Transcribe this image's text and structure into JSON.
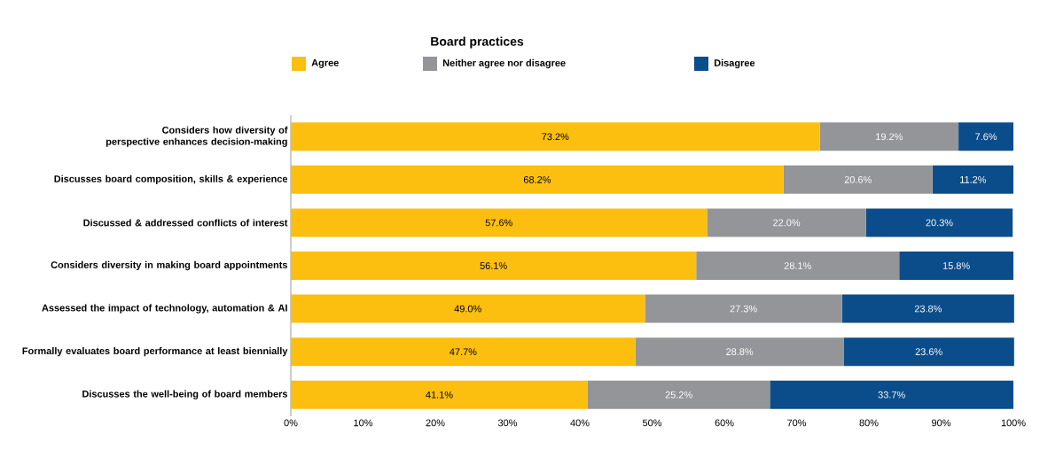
{
  "chart_data": {
    "type": "bar",
    "title": "Board practices",
    "orientation": "horizontal",
    "stacked": true,
    "legend": "top",
    "categories": [
      "Considers how diversity of perspective enhances decision-making",
      "Discusses board composition, skills & experience",
      "Discussed & addressed conflicts of interest",
      "Considers diversity in making board appointments",
      "Assessed the impact of technology, automation & AI",
      "Formally evaluates board performance at least biennially",
      "Discusses the well-being of board members"
    ],
    "series": [
      {
        "name": "Agree",
        "color": "#fcbf10",
        "values": [
          73.2,
          68.2,
          57.6,
          56.1,
          49.0,
          47.7,
          41.1
        ],
        "value_labels": [
          "73.2%",
          "68.2%",
          "57.6%",
          "56.1%",
          "49.0%",
          "47.7%",
          "41.1%"
        ]
      },
      {
        "name": "Neither agree nor disagree",
        "color": "#939598",
        "values": [
          19.2,
          20.6,
          22.0,
          28.1,
          27.3,
          28.8,
          25.2
        ],
        "value_labels": [
          "19.2%",
          "20.6%",
          "22.0%",
          "28.1%",
          "27.3%",
          "28.8%",
          "25.2%"
        ]
      },
      {
        "name": "Disagree",
        "color": "#0b4d8a",
        "values": [
          7.6,
          11.2,
          20.3,
          15.8,
          23.8,
          23.6,
          33.7
        ],
        "value_labels": [
          "7.6%",
          "11.2%",
          "20.3%",
          "15.8%",
          "23.8%",
          "23.6%",
          "33.7%"
        ]
      }
    ],
    "xlim": [
      0,
      100
    ],
    "xticks": [
      {
        "value": 0,
        "label": "0%"
      },
      {
        "value": 10,
        "label": "10%"
      },
      {
        "value": 20,
        "label": "20%"
      },
      {
        "value": 30,
        "label": "30%"
      },
      {
        "value": 40,
        "label": "40%"
      },
      {
        "value": 50,
        "label": "50%"
      },
      {
        "value": 60,
        "label": "60%"
      },
      {
        "value": 70,
        "label": "70%"
      },
      {
        "value": 80,
        "label": "80%"
      },
      {
        "value": 90,
        "label": "90%"
      },
      {
        "value": 100,
        "label": "100%"
      }
    ]
  }
}
